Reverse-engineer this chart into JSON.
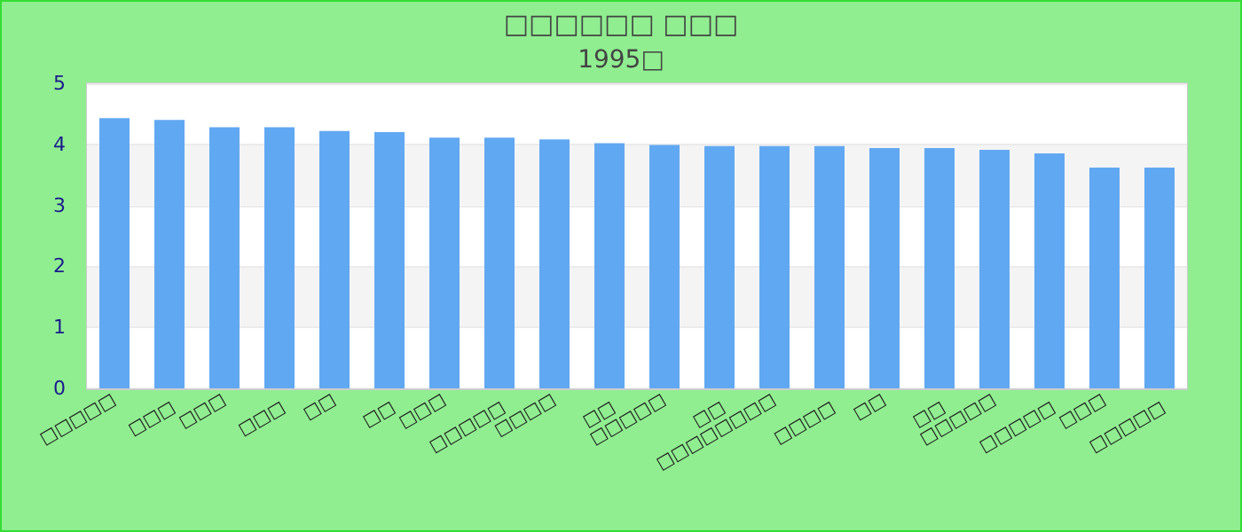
{
  "chart_data": {
    "type": "bar",
    "title": "□□□□□□ □□□",
    "subtitle": "1995□",
    "categories": [
      "□□□□□",
      "□□□",
      "□□□",
      "□□□",
      "□□",
      "□□",
      "□□□",
      "□□□□□",
      "□□□□",
      "□□",
      "□□□□□",
      "□□",
      "□□□□□□□□",
      "□□□□",
      "□□",
      "□□",
      "□□□□□",
      "□□□□□",
      "□□□",
      "□□□□□"
    ],
    "values": [
      4.43,
      4.4,
      4.28,
      4.28,
      4.22,
      4.2,
      4.11,
      4.11,
      4.08,
      4.02,
      3.99,
      3.97,
      3.97,
      3.97,
      3.94,
      3.94,
      3.91,
      3.85,
      3.62,
      3.62
    ],
    "color": "#61a8f2",
    "ylim": [
      0,
      5
    ],
    "yticks": [
      0,
      1,
      2,
      3,
      4,
      5
    ],
    "grid": "y"
  }
}
